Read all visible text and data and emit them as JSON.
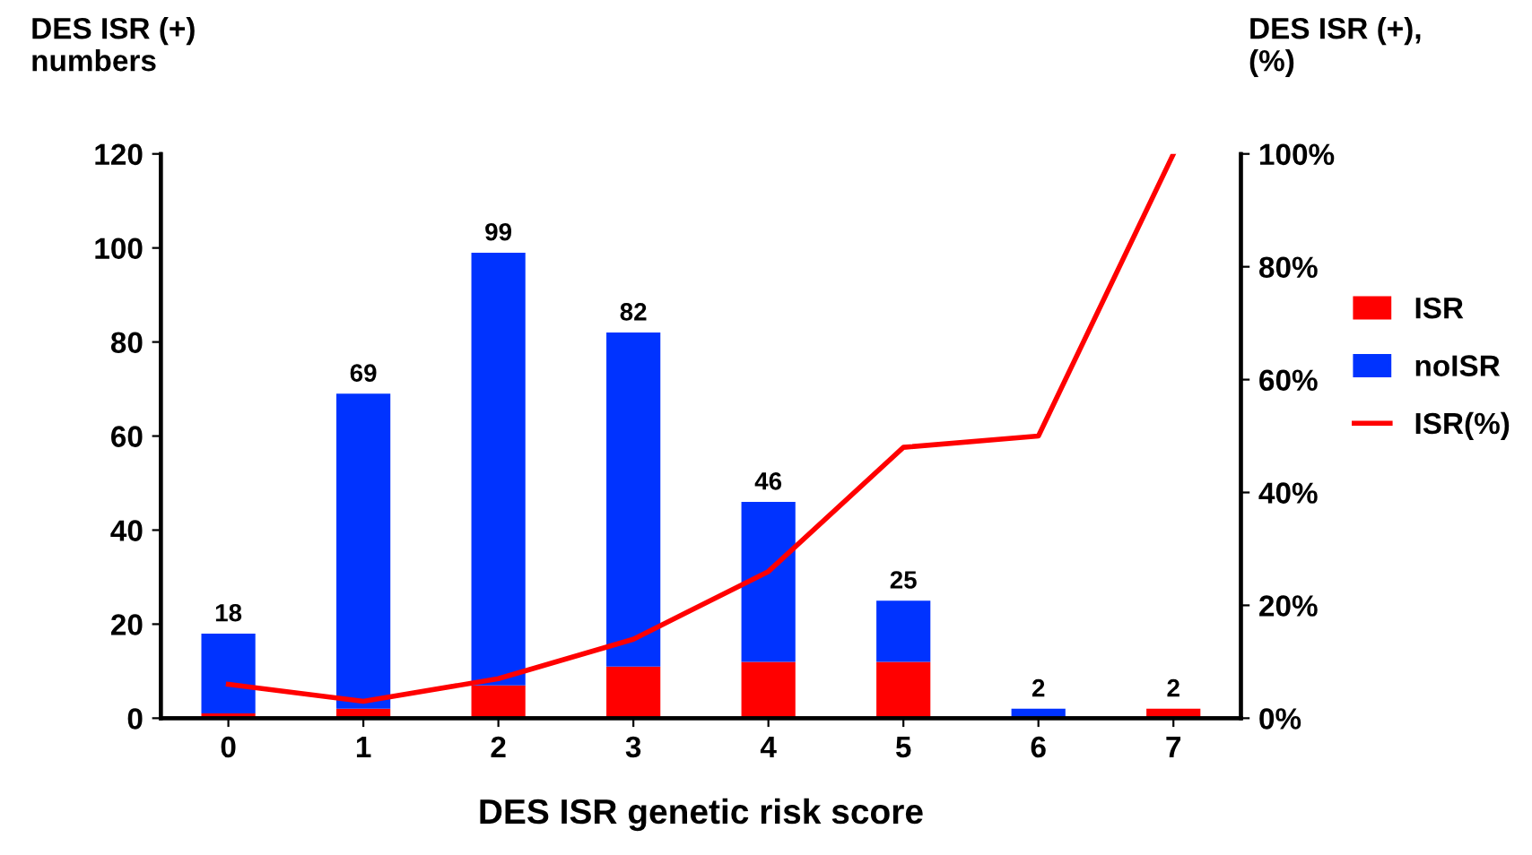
{
  "chart_data": {
    "type": "bar",
    "stacked": true,
    "xlabel": "DES ISR genetic risk score",
    "ylabel": "DES ISR (+)\nnumbers",
    "y2label": "DES ISR (+),\n(%)",
    "categories": [
      "0",
      "1",
      "2",
      "3",
      "4",
      "5",
      "6",
      "7"
    ],
    "series": [
      {
        "name": "ISR",
        "color": "#ff0000",
        "values": [
          1,
          2,
          7,
          11,
          12,
          12,
          0,
          2
        ]
      },
      {
        "name": "noISR",
        "color": "#0033ff",
        "values": [
          17,
          67,
          92,
          71,
          34,
          13,
          2,
          0
        ]
      },
      {
        "name": "ISR(%)",
        "type": "line",
        "axis": "y2",
        "color": "#ff0000",
        "values": [
          6,
          3,
          7,
          14,
          26,
          48,
          50,
          100
        ]
      }
    ],
    "totals": [
      "18",
      "69",
      "99",
      "82",
      "46",
      "25",
      "2",
      "2"
    ],
    "ylim": [
      0,
      120
    ],
    "yticks": [
      0,
      20,
      40,
      60,
      80,
      100,
      120
    ],
    "y2lim": [
      0,
      100
    ],
    "y2ticks": [
      {
        "value": 0,
        "label": "0%"
      },
      {
        "value": 20,
        "label": "20%"
      },
      {
        "value": 40,
        "label": "40%"
      },
      {
        "value": 60,
        "label": "60%"
      },
      {
        "value": 80,
        "label": "80%"
      },
      {
        "value": 100,
        "label": "100%"
      }
    ],
    "legend": "right",
    "grid": false,
    "marker": "none",
    "line_style": "solid"
  }
}
